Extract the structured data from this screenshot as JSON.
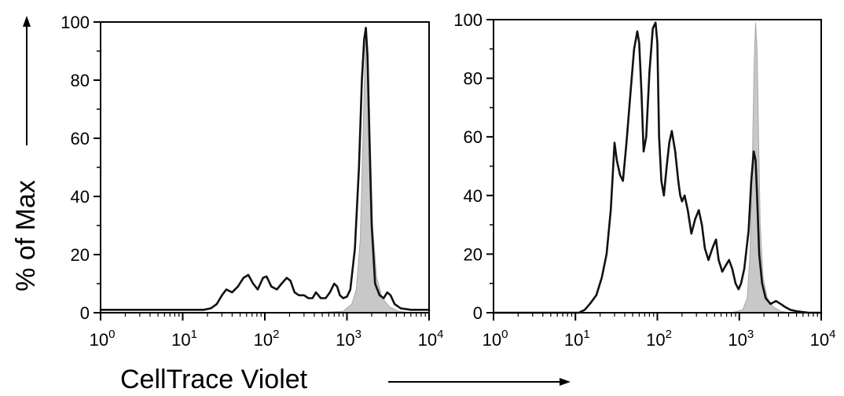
{
  "figure": {
    "y_axis_title": "% of Max",
    "x_axis_title": "CellTrace Violet"
  },
  "chart_data": [
    {
      "type": "area",
      "panel": "left",
      "xlabel": "CellTrace Violet",
      "ylabel": "% of Max",
      "xscale": "log",
      "xlim": [
        1,
        10000
      ],
      "ylim": [
        0,
        100
      ],
      "xtick_labels": [
        "10^0",
        "10^1",
        "10^2",
        "10^3",
        "10^4"
      ],
      "ytick_labels": [
        "0",
        "20",
        "40",
        "60",
        "80",
        "100"
      ],
      "grid": false,
      "series": [
        {
          "style": "filled-gray",
          "x": [
            1,
            400,
            900,
            1150,
            1300,
            1450,
            1550,
            1650,
            1720,
            1800,
            1900,
            2050,
            2300,
            2700,
            3300,
            4200,
            6000,
            10000
          ],
          "y": [
            0,
            0,
            0.5,
            3,
            8,
            25,
            55,
            85,
            98,
            90,
            65,
            30,
            12,
            5,
            2,
            0.5,
            0,
            0
          ]
        },
        {
          "style": "black-line",
          "x": [
            1,
            18,
            22,
            26,
            30,
            34,
            40,
            47,
            55,
            63,
            72,
            82,
            95,
            105,
            120,
            140,
            160,
            185,
            205,
            230,
            260,
            300,
            340,
            380,
            420,
            480,
            550,
            620,
            700,
            760,
            820,
            900,
            1000,
            1100,
            1250,
            1400,
            1520,
            1620,
            1700,
            1780,
            1880,
            2000,
            2200,
            2500,
            2800,
            3100,
            3400,
            3800,
            4500,
            6000,
            10000
          ],
          "y": [
            1,
            1,
            1.5,
            3,
            6,
            8,
            7,
            9,
            12,
            13,
            10,
            8,
            12,
            12.5,
            9,
            8,
            10,
            12,
            11,
            7,
            6,
            6,
            5,
            5,
            7,
            5,
            5,
            7,
            10,
            9,
            6,
            5,
            5.5,
            8,
            22,
            50,
            80,
            94,
            98,
            88,
            60,
            30,
            10,
            6,
            5,
            7,
            6,
            3,
            1.5,
            1,
            1
          ]
        }
      ]
    },
    {
      "type": "area",
      "panel": "right",
      "xlabel": "CellTrace Violet",
      "ylabel": "",
      "xscale": "log",
      "xlim": [
        1,
        10000
      ],
      "ylim": [
        0,
        100
      ],
      "xtick_labels": [
        "10^0",
        "10^1",
        "10^2",
        "10^3",
        "10^4"
      ],
      "ytick_labels": [
        "0",
        "20",
        "40",
        "60",
        "80",
        "100"
      ],
      "grid": false,
      "series": [
        {
          "style": "filled-gray",
          "x": [
            1,
            800,
            1100,
            1250,
            1350,
            1450,
            1520,
            1580,
            1650,
            1720,
            1800,
            1950,
            2200,
            2600,
            3200,
            4200,
            10000
          ],
          "y": [
            0,
            0,
            1,
            5,
            20,
            55,
            85,
            99,
            90,
            60,
            30,
            12,
            5,
            2,
            0.5,
            0,
            0
          ]
        },
        {
          "style": "black-line",
          "x": [
            1,
            11,
            13,
            15,
            18,
            21,
            24,
            27,
            30,
            32,
            35,
            38,
            42,
            47,
            52,
            57,
            60,
            64,
            68,
            73,
            80,
            88,
            95,
            100,
            105,
            112,
            120,
            130,
            140,
            150,
            165,
            180,
            190,
            200,
            215,
            235,
            260,
            290,
            320,
            350,
            380,
            420,
            470,
            520,
            560,
            620,
            680,
            750,
            820,
            900,
            980,
            1050,
            1150,
            1300,
            1400,
            1500,
            1580,
            1650,
            1750,
            1900,
            2100,
            2400,
            2800,
            3200,
            3600,
            4200,
            5000,
            7000,
            10000
          ],
          "y": [
            0,
            0,
            1,
            3,
            6,
            12,
            20,
            35,
            58,
            52,
            47,
            45,
            58,
            75,
            90,
            96,
            92,
            75,
            55,
            60,
            82,
            97,
            99,
            92,
            60,
            45,
            40,
            50,
            58,
            62,
            55,
            45,
            40,
            38,
            40,
            35,
            27,
            32,
            35,
            30,
            22,
            18,
            22,
            25,
            18,
            14,
            16,
            18,
            15,
            10,
            8,
            10,
            15,
            28,
            45,
            55,
            52,
            40,
            20,
            10,
            5,
            3,
            4,
            3,
            2,
            1,
            0.5,
            0,
            0
          ]
        }
      ]
    }
  ]
}
